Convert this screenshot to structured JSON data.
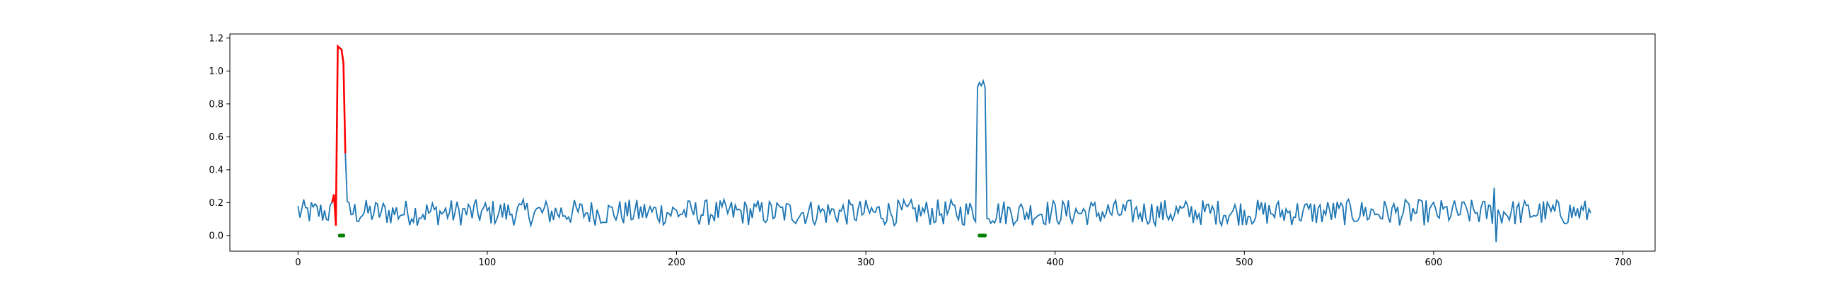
{
  "chart_data": {
    "type": "line",
    "title": "",
    "xlabel": "",
    "ylabel": "",
    "xlim": [
      -36,
      717
    ],
    "ylim": [
      -0.095,
      1.225
    ],
    "xticks": [
      0,
      100,
      200,
      300,
      400,
      500,
      600,
      700
    ],
    "yticks": [
      0.0,
      0.2,
      0.4,
      0.6,
      0.8,
      1.0,
      1.2
    ],
    "xtick_labels": [
      "0",
      "100",
      "200",
      "300",
      "400",
      "500",
      "600",
      "700"
    ],
    "ytick_labels": [
      "0.0",
      "0.2",
      "0.4",
      "0.6",
      "0.8",
      "1.0",
      "1.2"
    ],
    "grid": false,
    "series": [
      {
        "name": "",
        "color": "#1f77b4",
        "points": 684,
        "x_range": [
          0,
          683
        ],
        "baseline_mean": 0.14,
        "baseline_noise": 0.05,
        "spike": {
          "x_range": [
            359,
            363
          ],
          "values": [
            0.9,
            0.93,
            0.91,
            0.94
          ]
        },
        "dip": {
          "x": 633,
          "value": -0.04
        },
        "peak": {
          "x": 632,
          "value": 0.29
        }
      },
      {
        "name": "",
        "color": "#ff0000",
        "segment": true,
        "x": [
          18,
          19,
          20,
          21,
          22,
          23,
          24,
          25
        ],
        "y": [
          0.2,
          0.25,
          0.06,
          1.15,
          1.14,
          1.13,
          1.05,
          0.5
        ]
      },
      {
        "name": "",
        "color": "#008000",
        "type": "markers",
        "groups": [
          {
            "x_range": [
              22,
              24
            ],
            "y": 0.0
          },
          {
            "x_range": [
              360,
              363
            ],
            "y": 0.0
          }
        ]
      }
    ]
  }
}
